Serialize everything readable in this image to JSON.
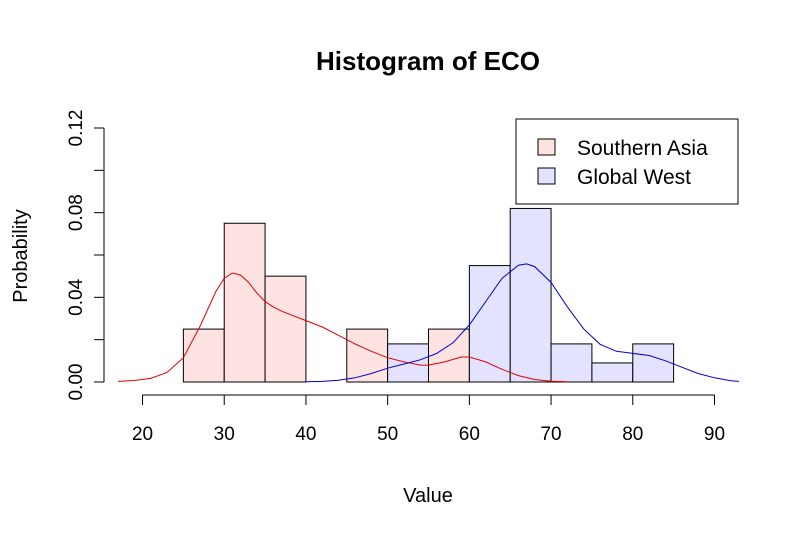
{
  "chart_data": {
    "type": "histogram",
    "title": "Histogram of ECO",
    "xlabel": "Value",
    "ylabel": "Probability",
    "xlim": [
      17,
      93
    ],
    "ylim": [
      0,
      0.12
    ],
    "x_ticks": [
      "20",
      "30",
      "40",
      "50",
      "60",
      "70",
      "80",
      "90"
    ],
    "y_ticks": [
      "0.00",
      "0.04",
      "0.08",
      "0.12"
    ],
    "legend_position": "top-right",
    "series": [
      {
        "name": "Southern Asia",
        "fill": "#ffe3e3",
        "line_color": "#e00000",
        "bins": [
          {
            "x0": 25,
            "x1": 30,
            "value": 0.025
          },
          {
            "x0": 30,
            "x1": 35,
            "value": 0.075
          },
          {
            "x0": 35,
            "x1": 40,
            "value": 0.05
          },
          {
            "x0": 45,
            "x1": 50,
            "value": 0.025
          },
          {
            "x0": 55,
            "x1": 60,
            "value": 0.025
          }
        ],
        "density": [
          [
            17,
            0.0003
          ],
          [
            19,
            0.0007
          ],
          [
            21,
            0.0017
          ],
          [
            23,
            0.0045
          ],
          [
            25,
            0.0115
          ],
          [
            27,
            0.026
          ],
          [
            29,
            0.043
          ],
          [
            30,
            0.049
          ],
          [
            31,
            0.0515
          ],
          [
            32,
            0.0505
          ],
          [
            33,
            0.047
          ],
          [
            34,
            0.042
          ],
          [
            35,
            0.038
          ],
          [
            36,
            0.0355
          ],
          [
            37,
            0.0335
          ],
          [
            38,
            0.032
          ],
          [
            40,
            0.029
          ],
          [
            42,
            0.026
          ],
          [
            44,
            0.022
          ],
          [
            46,
            0.018
          ],
          [
            48,
            0.0145
          ],
          [
            50,
            0.0115
          ],
          [
            52,
            0.0095
          ],
          [
            54,
            0.008
          ],
          [
            55,
            0.008
          ],
          [
            57,
            0.0095
          ],
          [
            59,
            0.0118
          ],
          [
            60,
            0.0118
          ],
          [
            62,
            0.0095
          ],
          [
            64,
            0.006
          ],
          [
            66,
            0.003
          ],
          [
            68,
            0.0012
          ],
          [
            70,
            0.0004
          ],
          [
            72,
            0.0001
          ]
        ]
      },
      {
        "name": "Global West",
        "fill": "#e3e3ff",
        "line_color": "#0000cc",
        "bins": [
          {
            "x0": 50,
            "x1": 55,
            "value": 0.018
          },
          {
            "x0": 60,
            "x1": 65,
            "value": 0.055
          },
          {
            "x0": 65,
            "x1": 70,
            "value": 0.082
          },
          {
            "x0": 70,
            "x1": 75,
            "value": 0.018
          },
          {
            "x0": 75,
            "x1": 80,
            "value": 0.009
          },
          {
            "x0": 80,
            "x1": 85,
            "value": 0.018
          }
        ],
        "density": [
          [
            40,
            0.0001
          ],
          [
            42,
            0.0003
          ],
          [
            44,
            0.0008
          ],
          [
            46,
            0.002
          ],
          [
            48,
            0.004
          ],
          [
            50,
            0.0065
          ],
          [
            52,
            0.0085
          ],
          [
            54,
            0.0105
          ],
          [
            56,
            0.0135
          ],
          [
            58,
            0.0185
          ],
          [
            60,
            0.027
          ],
          [
            62,
            0.038
          ],
          [
            64,
            0.049
          ],
          [
            66,
            0.0552
          ],
          [
            67,
            0.0558
          ],
          [
            68,
            0.0545
          ],
          [
            70,
            0.047
          ],
          [
            72,
            0.0355
          ],
          [
            74,
            0.025
          ],
          [
            76,
            0.0178
          ],
          [
            78,
            0.0145
          ],
          [
            80,
            0.0135
          ],
          [
            82,
            0.0125
          ],
          [
            84,
            0.01
          ],
          [
            86,
            0.007
          ],
          [
            88,
            0.004
          ],
          [
            90,
            0.002
          ],
          [
            92,
            0.0006
          ],
          [
            93,
            0.0003
          ]
        ]
      }
    ]
  }
}
